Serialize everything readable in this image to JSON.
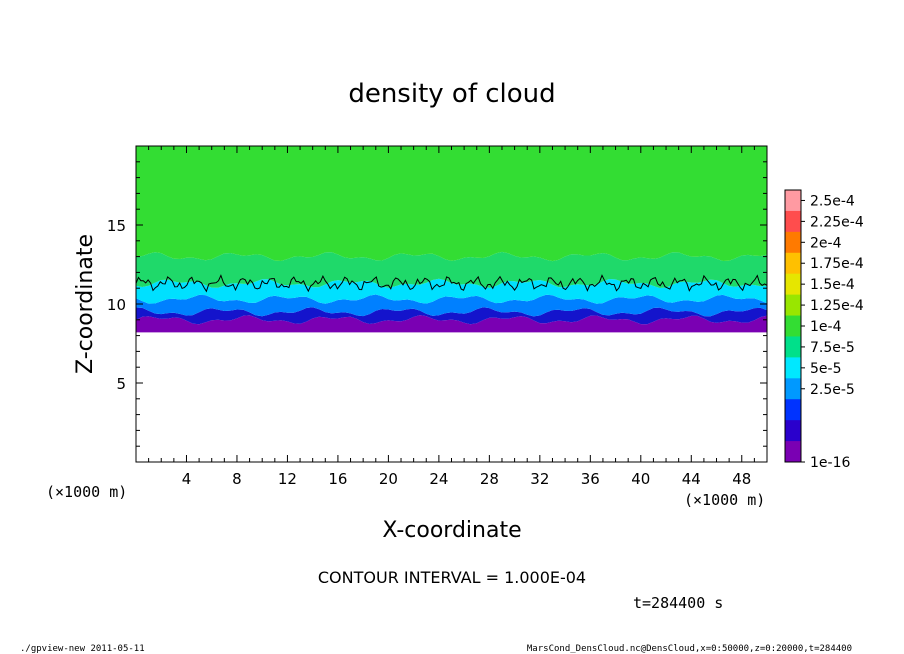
{
  "chart_data": {
    "type": "heatmap",
    "title": "density of cloud",
    "xlabel": "X-coordinate",
    "ylabel": "Z-coordinate",
    "x_unit_label": "(×1000 m)",
    "x_unit_label_right": "(×1000 m)",
    "xlim": [
      0,
      50
    ],
    "ylim": [
      0,
      20
    ],
    "x_ticks": [
      4,
      8,
      12,
      16,
      20,
      24,
      28,
      32,
      36,
      40,
      44,
      48
    ],
    "y_ticks": [
      5,
      10,
      15
    ],
    "colorbar": {
      "levels": [
        "2.5e-4",
        "2.25e-4",
        "2e-4",
        "1.75e-4",
        "1.5e-4",
        "1.25e-4",
        "1e-4",
        "7.5e-5",
        "5e-5",
        "2.5e-5",
        "1e-16"
      ],
      "colors": [
        "#ff9aa2",
        "#ff4d4d",
        "#ff7a00",
        "#ffc000",
        "#e6e600",
        "#99e600",
        "#33dd33",
        "#00e08a",
        "#00e8ff",
        "#0099ff",
        "#0033ff",
        "#2a00cc",
        "#7a00b3"
      ]
    },
    "layers": [
      {
        "z_bottom": 8.2,
        "z_top": 9.0,
        "value_range": "1e-16 to 2.5e-5",
        "color": "#7a00b3"
      },
      {
        "z_bottom": 9.0,
        "z_top": 9.5,
        "value_range": "2.5e-5 to 5e-5",
        "color": "#1414cc"
      },
      {
        "z_bottom": 9.5,
        "z_top": 10.3,
        "value_range": "5e-5 to 7.5e-5",
        "color": "#0080ff"
      },
      {
        "z_bottom": 10.3,
        "z_top": 11.3,
        "value_range": "7.5e-5 to 1e-4",
        "color": "#00e0ff"
      },
      {
        "z_bottom": 11.3,
        "z_top": 13.0,
        "value_range": "1e-4 to 1.25e-4",
        "color": "#1fd96a"
      },
      {
        "z_bottom": 13.0,
        "z_top": 20.0,
        "value_range": "1.25e-4 to 1.5e-4",
        "color": "#33dd33"
      }
    ],
    "contour_level": "1e-4",
    "contour_interval": "CONTOUR INTERVAL = 1.000E-04",
    "time_label": "t=284400 s"
  },
  "footer": {
    "left": "./gpview-new  2011-05-11",
    "right": "MarsCond_DensCloud.nc@DensCloud,x=0:50000,z=0:20000,t=284400"
  }
}
